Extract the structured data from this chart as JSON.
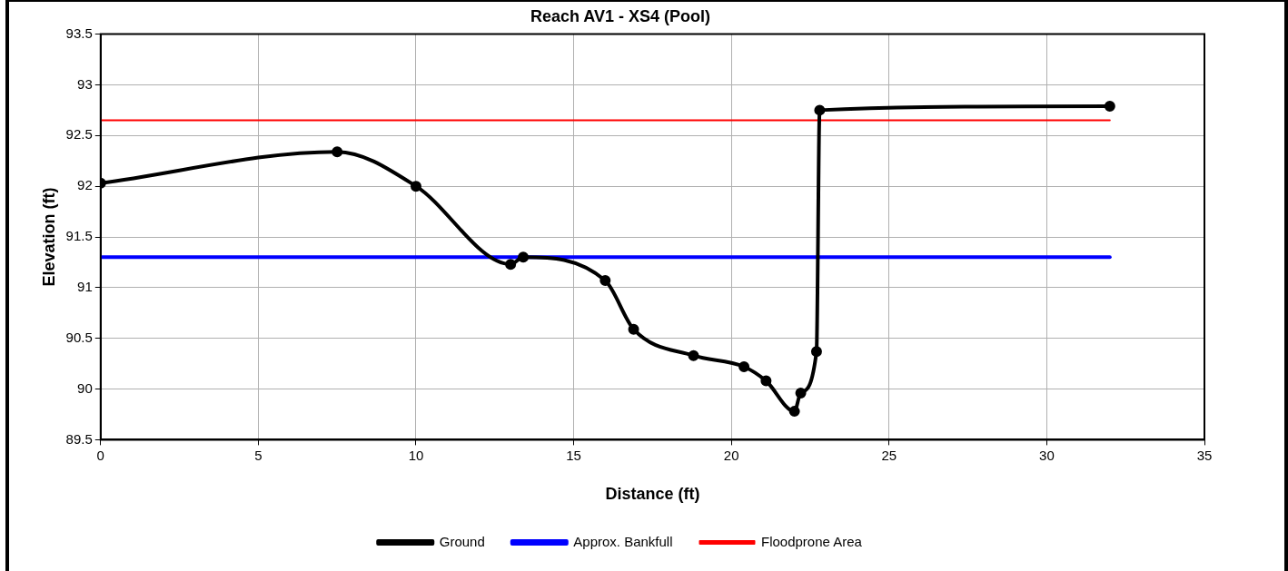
{
  "chart_data": {
    "type": "line",
    "title": "Reach AV1 - XS4 (Pool)",
    "xlabel": "Distance (ft)",
    "ylabel": "Elevation (ft)",
    "xlim": [
      0,
      35
    ],
    "xticks": [
      0,
      5,
      10,
      15,
      20,
      25,
      30,
      35
    ],
    "ylim": [
      89.5,
      93.5
    ],
    "yticks": [
      89.5,
      90,
      90.5,
      91,
      91.5,
      92,
      92.5,
      93,
      93.5
    ],
    "grid": true,
    "legend": "bottom",
    "series": [
      {
        "name": "Ground",
        "color": "#000000",
        "marker": "circle",
        "x": [
          0,
          7.5,
          10,
          13,
          13.4,
          16,
          16.9,
          18.8,
          20.4,
          21.1,
          22,
          22.2,
          22.7,
          22.8,
          32
        ],
        "values": [
          92.03,
          92.34,
          92.0,
          91.23,
          91.3,
          91.07,
          90.59,
          90.33,
          90.22,
          90.08,
          89.78,
          89.96,
          90.37,
          92.75,
          92.79
        ]
      },
      {
        "name": "Approx. Bankfull",
        "color": "#0000ff",
        "marker": "none",
        "x": [
          0,
          32
        ],
        "values": [
          91.3,
          91.3
        ]
      },
      {
        "name": "Floodprone Area",
        "color": "#ff0000",
        "marker": "none",
        "x": [
          0,
          32
        ],
        "values": [
          92.65,
          92.65
        ]
      }
    ]
  }
}
